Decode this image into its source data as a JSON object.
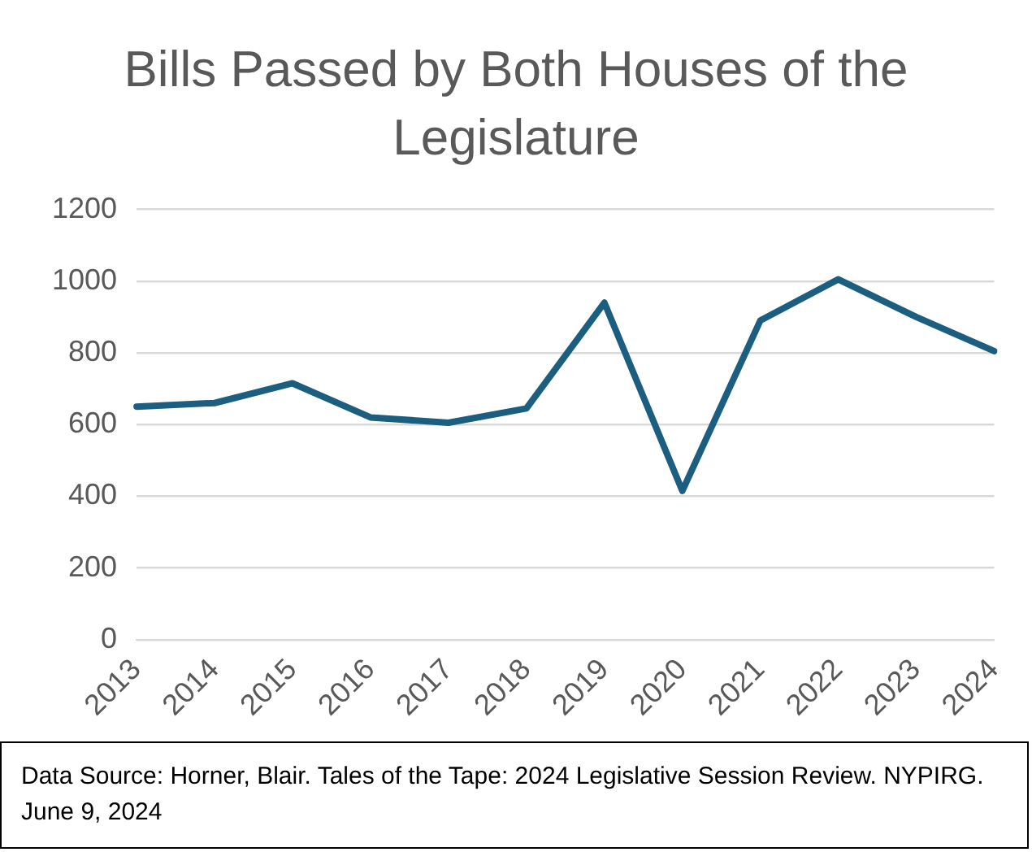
{
  "chart_data": {
    "type": "line",
    "title": "Bills Passed by Both Houses of the Legislature",
    "categories": [
      "2013",
      "2014",
      "2015",
      "2016",
      "2017",
      "2018",
      "2019",
      "2020",
      "2021",
      "2022",
      "2023",
      "2024"
    ],
    "series": [
      {
        "color": "#1b5e80",
        "values": [
          650,
          660,
          715,
          620,
          605,
          645,
          940,
          415,
          890,
          1005,
          900,
          805
        ]
      }
    ],
    "ylim": [
      0,
      1200
    ],
    "yticks": [
      0,
      200,
      400,
      600,
      800,
      1000,
      1200
    ],
    "grid": "y",
    "legend": false,
    "marker": "none",
    "line_style": "solid",
    "annotations": [
      "Data Source: Horner, Blair. Tales of the Tape: 2024 Legislative Session Review. NYPIRG. June 9, 2024"
    ]
  }
}
